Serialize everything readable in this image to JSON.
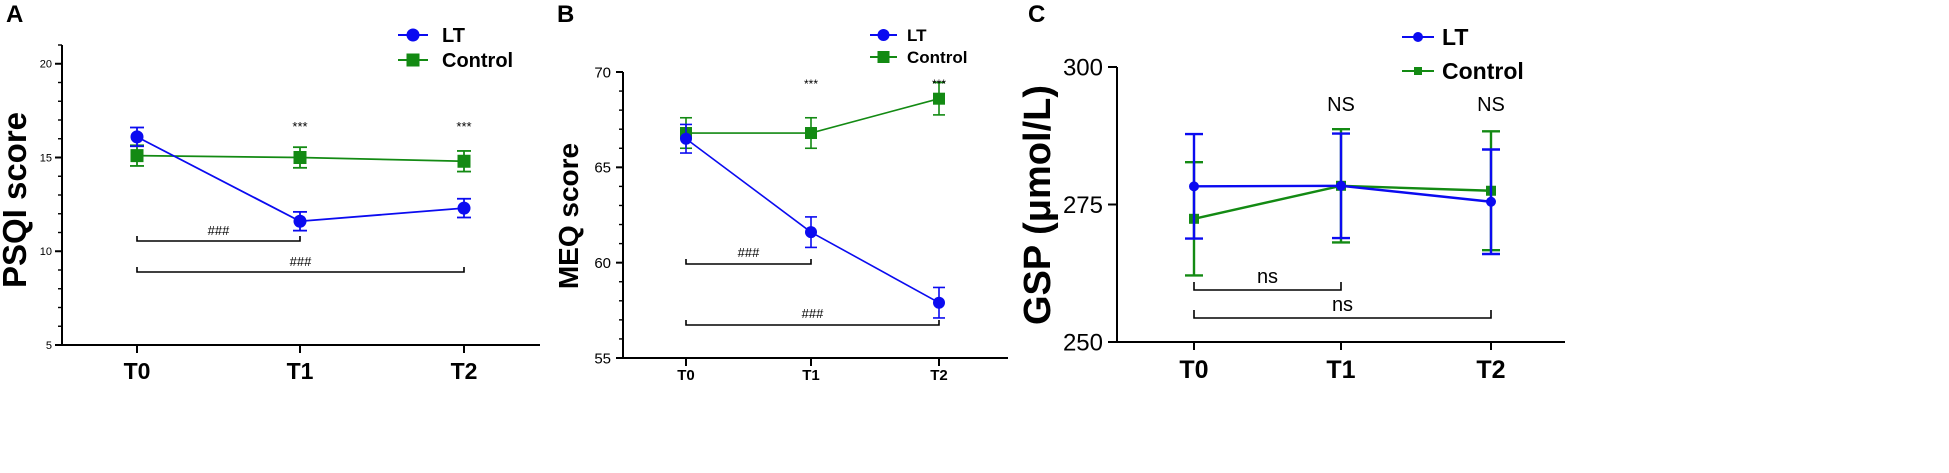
{
  "panels": [
    {
      "letter": "A",
      "chart_data": {
        "type": "line",
        "title": "",
        "xlabel": "",
        "ylabel": "PSQI score",
        "categories": [
          "T0",
          "T1",
          "T2"
        ],
        "ylim": [
          5,
          21
        ],
        "yticks": [
          5,
          10,
          15,
          20
        ],
        "series": [
          {
            "name": "LT",
            "color": "#0b0bf0",
            "marker": "circle",
            "values": [
              16.1,
              11.6,
              12.3
            ],
            "errors": [
              0.5,
              0.5,
              0.5
            ]
          },
          {
            "name": "Control",
            "color": "#138a13",
            "marker": "square",
            "values": [
              15.1,
              15.0,
              14.8
            ],
            "errors": [
              0.55,
              0.55,
              0.55
            ]
          }
        ],
        "top_annotations": [
          "",
          "***",
          "***"
        ],
        "brackets": [
          {
            "from": 0,
            "to": 1,
            "label": "###"
          },
          {
            "from": 0,
            "to": 2,
            "label": "###"
          }
        ]
      }
    },
    {
      "letter": "B",
      "chart_data": {
        "type": "line",
        "title": "",
        "xlabel": "",
        "ylabel": "MEQ score",
        "categories": [
          "T0",
          "T1",
          "T2"
        ],
        "ylim": [
          55,
          70
        ],
        "yticks": [
          55,
          60,
          65,
          70
        ],
        "series": [
          {
            "name": "LT",
            "color": "#0b0bf0",
            "marker": "circle",
            "values": [
              66.5,
              61.6,
              57.9
            ],
            "errors": [
              0.75,
              0.8,
              0.8
            ]
          },
          {
            "name": "Control",
            "color": "#138a13",
            "marker": "square",
            "values": [
              66.8,
              66.8,
              68.6
            ],
            "errors": [
              0.8,
              0.8,
              0.85
            ]
          }
        ],
        "top_annotations": [
          "",
          "***",
          "***"
        ],
        "brackets": [
          {
            "from": 0,
            "to": 1,
            "label": "###"
          },
          {
            "from": 0,
            "to": 2,
            "label": "###"
          }
        ]
      }
    },
    {
      "letter": "C",
      "chart_data": {
        "type": "line",
        "title": "",
        "xlabel": "",
        "ylabel": "GSP (μmol/L)",
        "categories": [
          "T0",
          "T1",
          "T2"
        ],
        "ylim": [
          250,
          300
        ],
        "yticks": [
          250,
          275,
          300
        ],
        "series": [
          {
            "name": "LT",
            "color": "#0b0bf0",
            "marker": "circle",
            "values": [
              278.3,
              278.4,
              275.5
            ],
            "errors": [
              9.5,
              9.5,
              9.5
            ]
          },
          {
            "name": "Control",
            "color": "#138a13",
            "marker": "square",
            "values": [
              272.4,
              278.4,
              277.5
            ],
            "errors": [
              10.3,
              10.3,
              10.8
            ]
          }
        ],
        "top_annotations": [
          "",
          "NS",
          "NS"
        ],
        "brackets": [
          {
            "from": 0,
            "to": 1,
            "label": "ns"
          },
          {
            "from": 0,
            "to": 2,
            "label": "ns"
          }
        ]
      }
    }
  ]
}
